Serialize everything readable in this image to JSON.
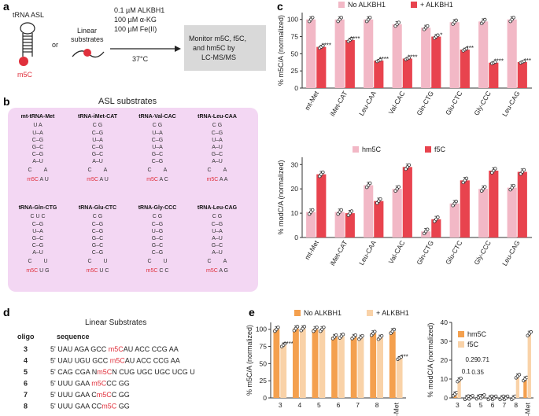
{
  "colors": {
    "light_pink": "#f2b8c6",
    "red": "#e8434e",
    "orange": "#f4a04e",
    "light_orange": "#f9d2a8",
    "grey_box": "#d9d9d9",
    "asl_bg": "#f3d7f3"
  },
  "panel_a": {
    "label": "a",
    "asl_title": "tRNA ASL",
    "or_text": "or",
    "linear_line1": "Linear",
    "linear_line2": "substrates",
    "mod_label": "m5C",
    "conditions": [
      "0.1 µM ALKBH1",
      "100 µM α-KG",
      "100 µM Fe(II)"
    ],
    "temp": "37°C",
    "box_lines": [
      "Monitor m5C, f5C,",
      "and hm5C by",
      "LC-MS/MS"
    ]
  },
  "panel_b": {
    "label": "b",
    "title": "ASL substrates",
    "substrates": [
      {
        "name": "mt-tRNA-Met",
        "top": "U A",
        "pairs": [
          "U–A",
          "C–G",
          "G–C",
          "C–G",
          "A–U"
        ],
        "loop_l": "C",
        "loop_r": "A",
        "bottom": "m5C A U"
      },
      {
        "name": "tRNA-iMet-CAT",
        "top": "C G",
        "pairs": [
          "C–G",
          "U–A",
          "C–G",
          "G–C",
          "A–U"
        ],
        "loop_l": "C",
        "loop_r": "A",
        "bottom": "m5C A U"
      },
      {
        "name": "tRNA-Val-CAC",
        "top": "C G",
        "pairs": [
          "U–A",
          "C–G",
          "U–A",
          "G–C",
          "C–G"
        ],
        "loop_l": "C",
        "loop_r": "A",
        "bottom": "m5C A C"
      },
      {
        "name": "tRNA-Leu-CAA",
        "top": "C G",
        "pairs": [
          "C–G",
          "U–A",
          "A–U",
          "G–C",
          "A–U"
        ],
        "loop_l": "C",
        "loop_r": "A",
        "bottom": "m5C A A"
      },
      {
        "name": "tRNA-Gln-CTG",
        "top": "C U C",
        "pairs": [
          "C–G",
          "U–A",
          "G–C",
          "C–G",
          "A–U"
        ],
        "loop_l": "C",
        "loop_r": "U",
        "bottom": "m5C U G"
      },
      {
        "name": "tRNA-Glu-CTC",
        "top": "C G",
        "pairs": [
          "C–G",
          "C–G",
          "G–C",
          "G–C",
          "C–G"
        ],
        "loop_l": "C",
        "loop_r": "U",
        "bottom": "m5C U C"
      },
      {
        "name": "tRNA-Gly-CCC",
        "top": "C G",
        "pairs": [
          "C–G",
          "U–G",
          "G–C",
          "G–C",
          "C–G"
        ],
        "loop_l": "C",
        "loop_r": "U",
        "bottom": "m5C C C"
      },
      {
        "name": "tRNA-Leu-CAG",
        "top": "C G",
        "pairs": [
          "C–G",
          "U–A",
          "A–U",
          "G–C",
          "A–U"
        ],
        "loop_l": "C",
        "loop_r": "A",
        "bottom": "m5C A G"
      }
    ]
  },
  "panel_d": {
    "label": "d",
    "title": "Linear Substrates",
    "col_oligo": "oligo",
    "col_seq": "sequence",
    "rows": [
      {
        "oligo": "3",
        "pre": "5' UAU AGA GCC ",
        "mod": "m5C",
        "post": "AU ACC CCG AA"
      },
      {
        "oligo": "4",
        "pre": "5' UAU UGU GCC ",
        "mod": "m5C",
        "post": "AU ACC CCG AA"
      },
      {
        "oligo": "5",
        "pre": "5' CAG CGA N",
        "mod": "m5C",
        "post": "N CUG UGC UGC UCG U"
      },
      {
        "oligo": "6",
        "pre": "5' UUU GAA ",
        "mod": "m5C",
        "post": "CC GG"
      },
      {
        "oligo": "7",
        "pre": "5' UUU GAA C",
        "mod": "m5C",
        "post": "C GG"
      },
      {
        "oligo": "8",
        "pre": "5' UUU GAA CC",
        "mod": "m5C",
        "post": " GG"
      }
    ]
  },
  "chart_data": [
    {
      "id": "c-top",
      "type": "bar",
      "panel": "c",
      "categories": [
        "mt-Met",
        "iMet-CAT",
        "Leu-CAA",
        "Val-CAC",
        "Gln-CTG",
        "Glu-CTC",
        "Gly-CCC",
        "Leu-CAG"
      ],
      "series": [
        {
          "name": "No ALKBH1",
          "values": [
            100,
            100,
            100,
            93,
            88,
            96,
            97,
            100
          ]
        },
        {
          "name": "+ ALKBH1",
          "values": [
            60,
            70,
            40,
            43,
            75,
            56,
            37,
            38
          ]
        }
      ],
      "significance": [
        "****",
        "****",
        "****",
        "****",
        "*",
        "***",
        "****",
        "***"
      ],
      "ylabel": "% m5C/A (normalized)",
      "ylim": [
        0,
        110
      ],
      "yticks": [
        0,
        25,
        50,
        75,
        100
      ],
      "legend": "top"
    },
    {
      "id": "c-bottom",
      "type": "bar",
      "panel": "c",
      "categories": [
        "mt-Met",
        "iMet-CAT",
        "Leu-CAA",
        "Val-CAC",
        "Gln-CTG",
        "Glu-CTC",
        "Gly-CCC",
        "Leu-CAG"
      ],
      "series": [
        {
          "name": "hm5C",
          "values": [
            10.5,
            10.5,
            21.5,
            20,
            2.5,
            14,
            20,
            20.5
          ]
        },
        {
          "name": "f5C",
          "values": [
            26,
            10,
            15,
            29,
            7.5,
            23.5,
            27.5,
            27
          ]
        }
      ],
      "ylabel": "% modC/A (normalized)",
      "ylim": [
        0,
        33
      ],
      "yticks": [
        0,
        10,
        20,
        30
      ],
      "legend": "top"
    },
    {
      "id": "e-left",
      "type": "bar",
      "panel": "e",
      "categories": [
        "3",
        "4",
        "5",
        "6",
        "7",
        "8",
        "mt-Met"
      ],
      "series": [
        {
          "name": "No ALKBH1",
          "values": [
            100,
            101,
            100,
            89,
            89,
            94,
            97
          ]
        },
        {
          "name": "+ ALKBH1",
          "values": [
            77,
            101,
            100,
            90,
            88,
            88,
            58
          ]
        }
      ],
      "significance": [
        "****",
        "",
        "",
        "",
        "",
        "",
        "***"
      ],
      "ylabel": "% m5C/A (normalized)",
      "ylim": [
        0,
        110
      ],
      "yticks": [
        0,
        25,
        50,
        75,
        100
      ],
      "legend": "top"
    },
    {
      "id": "e-right",
      "type": "bar",
      "panel": "e",
      "categories": [
        "3",
        "4",
        "5",
        "6",
        "7",
        "8",
        "mt-Met"
      ],
      "series": [
        {
          "name": "hm5C",
          "values": [
            2,
            0.1,
            0.35,
            0.02,
            0.02,
            0.02,
            10
          ]
        },
        {
          "name": "f5C",
          "values": [
            9.5,
            0.29,
            0.71,
            0.02,
            0.02,
            11.5,
            34
          ]
        }
      ],
      "annotations": [
        "0.1",
        "0.29",
        "0.35",
        "0.71"
      ],
      "ylabel": "% modC/A (normalized)",
      "ylim": [
        0,
        40
      ],
      "yticks": [
        0,
        10,
        20,
        30,
        40
      ],
      "legend": "top-left"
    }
  ],
  "panel_c_label": "c",
  "panel_e_label": "e"
}
